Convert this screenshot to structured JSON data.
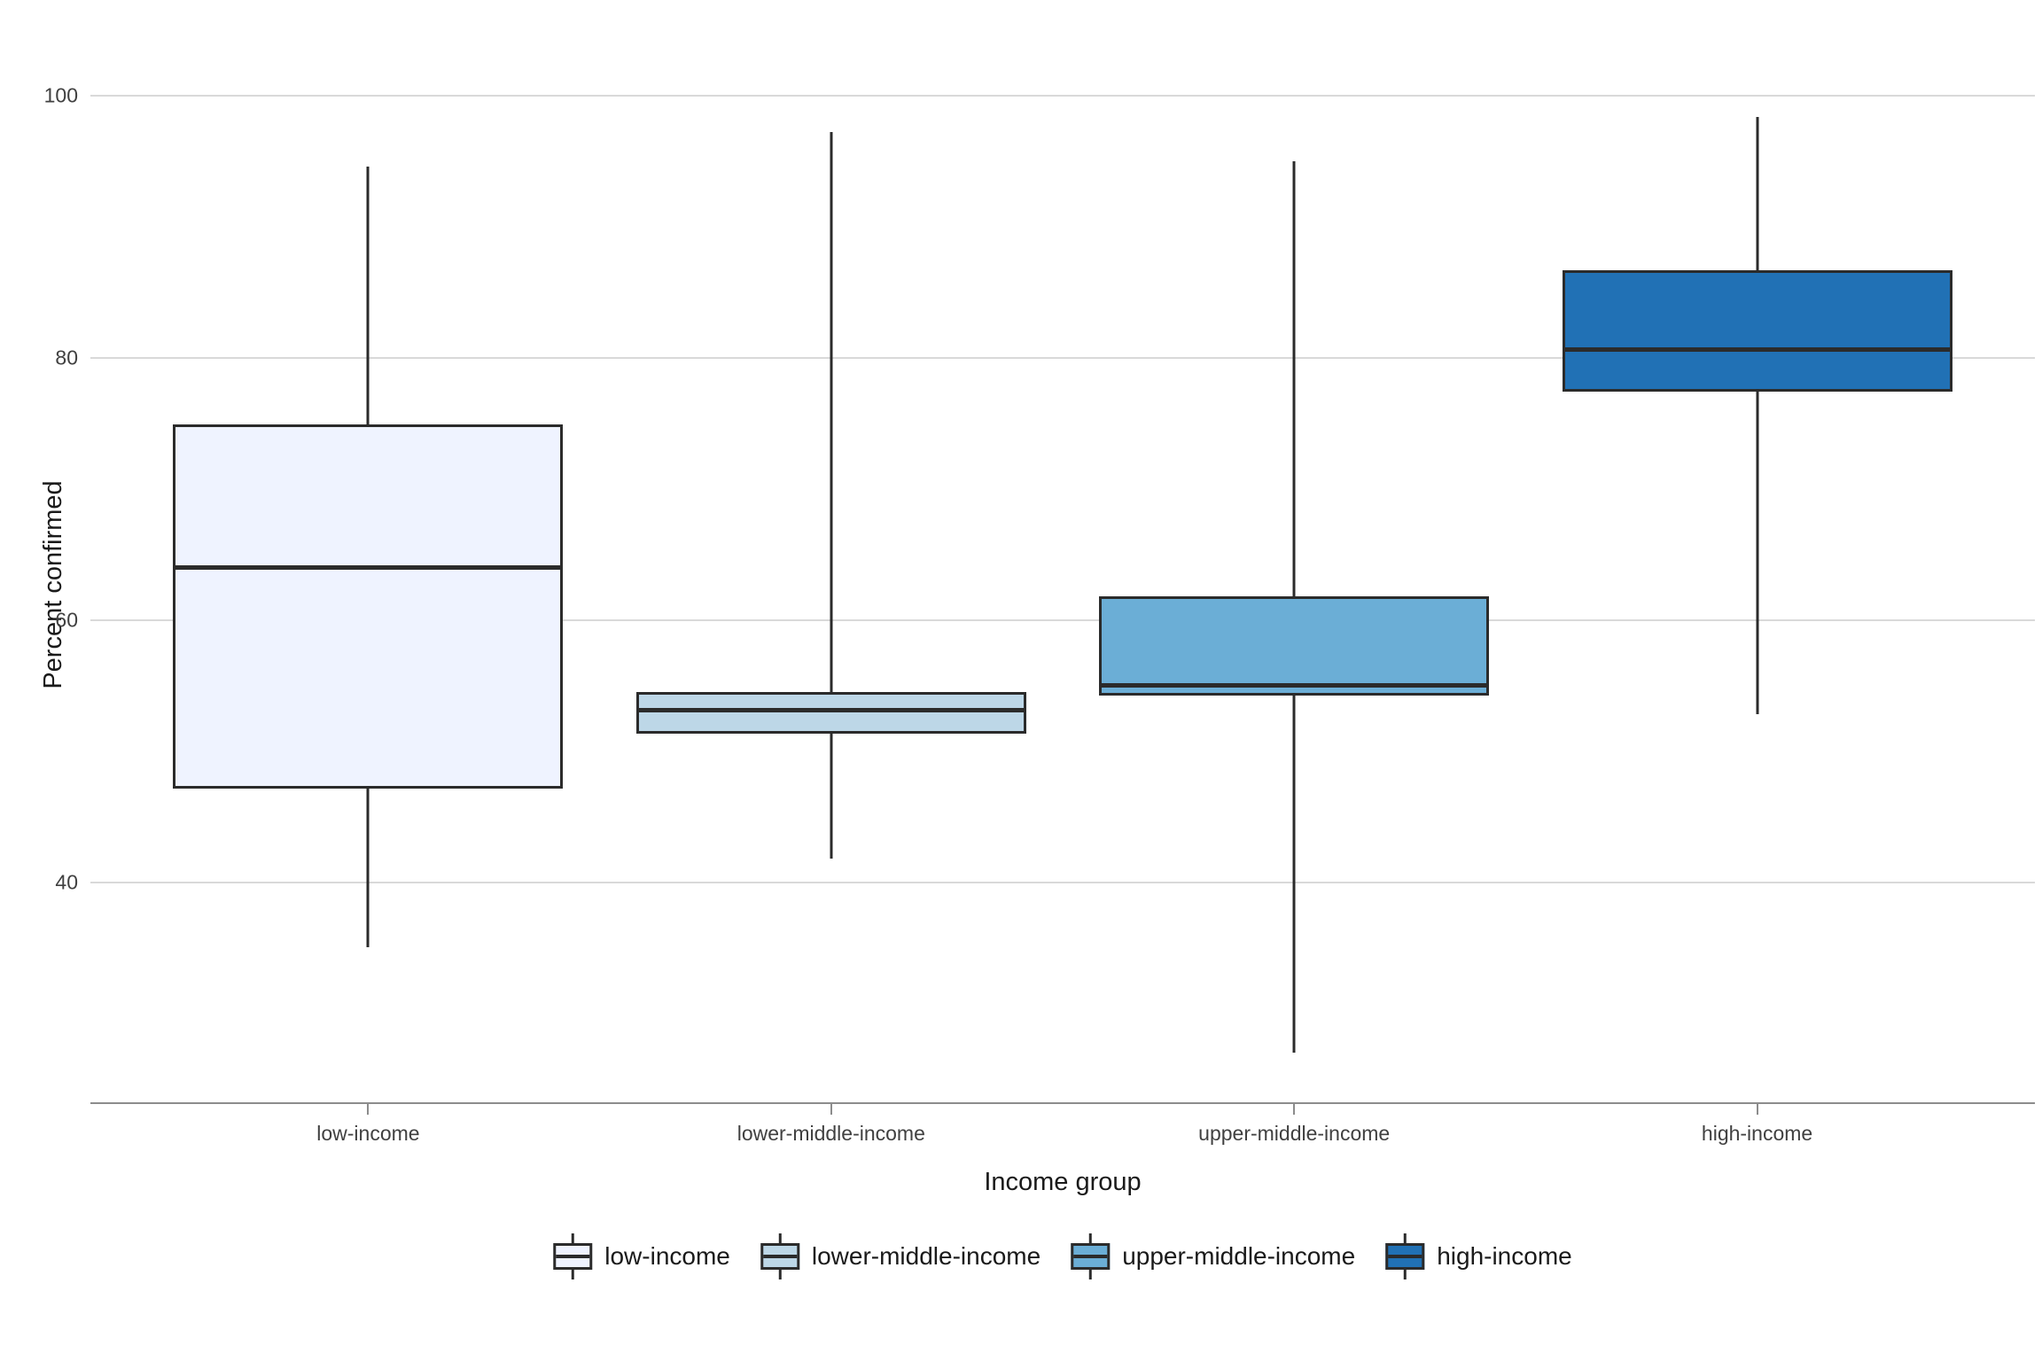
{
  "chart_data": {
    "type": "boxplot",
    "title": "",
    "xlabel": "Income group",
    "ylabel": "Percent confirmed",
    "categories": [
      "low-income",
      "lower-middle-income",
      "upper-middle-income",
      "high-income"
    ],
    "series": [
      {
        "name": "low-income",
        "color": "#eff3ff",
        "min": 35.0,
        "q1": 47.1,
        "median": 64.0,
        "q3": 74.9,
        "max": 94.6
      },
      {
        "name": "lower-middle-income",
        "color": "#bdd7e7",
        "min": 41.8,
        "q1": 51.3,
        "median": 53.1,
        "q3": 54.5,
        "max": 97.2
      },
      {
        "name": "upper-middle-income",
        "color": "#6baed6",
        "min": 27.0,
        "q1": 54.2,
        "median": 55.0,
        "q3": 61.8,
        "max": 95.0
      },
      {
        "name": "high-income",
        "color": "#2171b5",
        "min": 52.8,
        "q1": 77.4,
        "median": 80.6,
        "q3": 86.7,
        "max": 98.4
      }
    ],
    "yticks": [
      100,
      80,
      60,
      40
    ],
    "ylim": [
      23.2,
      104.6
    ],
    "grid": "horizontal-major-only",
    "legend_position": "bottom",
    "legend_entries": [
      "low-income",
      "lower-middle-income",
      "upper-middle-income",
      "high-income"
    ],
    "colors": {
      "box_border": "#2b2b2b",
      "median_line": "#2b2b2b",
      "gridline": "#d9d9d9",
      "axis_line": "#8c8c8c",
      "tick_label": "#404040",
      "axis_title": "#1a1a1a",
      "background": "#ffffff"
    }
  }
}
